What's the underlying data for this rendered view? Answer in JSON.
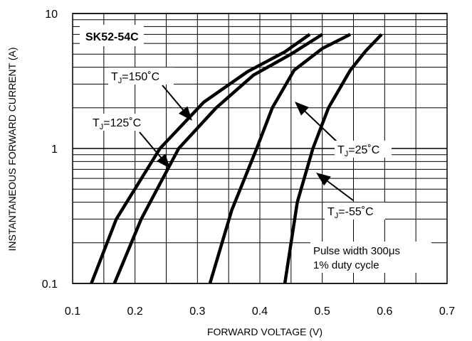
{
  "chart_data": {
    "type": "line",
    "title": "SK52-54C",
    "xlabel": "FORWARD VOLTAGE (V)",
    "ylabel": "INSTANTANEOUS FORWARD CURRENT (A)",
    "xlim": [
      0.1,
      0.7
    ],
    "ylim": [
      0.1,
      10
    ],
    "yscale": "log",
    "grid": true,
    "x_ticks": [
      "0.1",
      "0.2",
      "0.3",
      "0.4",
      "0.5",
      "0.6",
      "0.7"
    ],
    "y_ticks": [
      "0.1",
      "1",
      "10"
    ],
    "series": [
      {
        "name": "TJ=150°C",
        "label_main": "T",
        "label_sub": "J",
        "label_rest": "=150˚C",
        "points": [
          [
            0.13,
            0.1
          ],
          [
            0.17,
            0.3
          ],
          [
            0.24,
            1.0
          ],
          [
            0.31,
            2.2
          ],
          [
            0.38,
            3.7
          ],
          [
            0.44,
            5.2
          ],
          [
            0.48,
            7.0
          ]
        ]
      },
      {
        "name": "TJ=125°C",
        "label_main": "T",
        "label_sub": "J",
        "label_rest": "=125˚C",
        "points": [
          [
            0.167,
            0.1
          ],
          [
            0.21,
            0.3
          ],
          [
            0.27,
            1.0
          ],
          [
            0.33,
            2.0
          ],
          [
            0.39,
            3.5
          ],
          [
            0.45,
            5.0
          ],
          [
            0.5,
            7.0
          ]
        ]
      },
      {
        "name": "TJ=25°C",
        "label_main": "T",
        "label_sub": "J",
        "label_rest": "=25˚C",
        "points": [
          [
            0.32,
            0.1
          ],
          [
            0.355,
            0.35
          ],
          [
            0.395,
            1.0
          ],
          [
            0.42,
            2.0
          ],
          [
            0.455,
            3.8
          ],
          [
            0.5,
            5.5
          ],
          [
            0.545,
            7.0
          ]
        ]
      },
      {
        "name": "TJ=-55°C",
        "label_main": "T",
        "label_sub": "J",
        "label_rest": "=-55˚C",
        "points": [
          [
            0.44,
            0.1
          ],
          [
            0.46,
            0.4
          ],
          [
            0.485,
            1.0
          ],
          [
            0.51,
            2.0
          ],
          [
            0.545,
            3.8
          ],
          [
            0.57,
            5.3
          ],
          [
            0.595,
            7.0
          ]
        ]
      }
    ],
    "annotations": [
      {
        "lines": [
          "Pulse width 300μs",
          "1% duty cycle"
        ]
      }
    ]
  }
}
